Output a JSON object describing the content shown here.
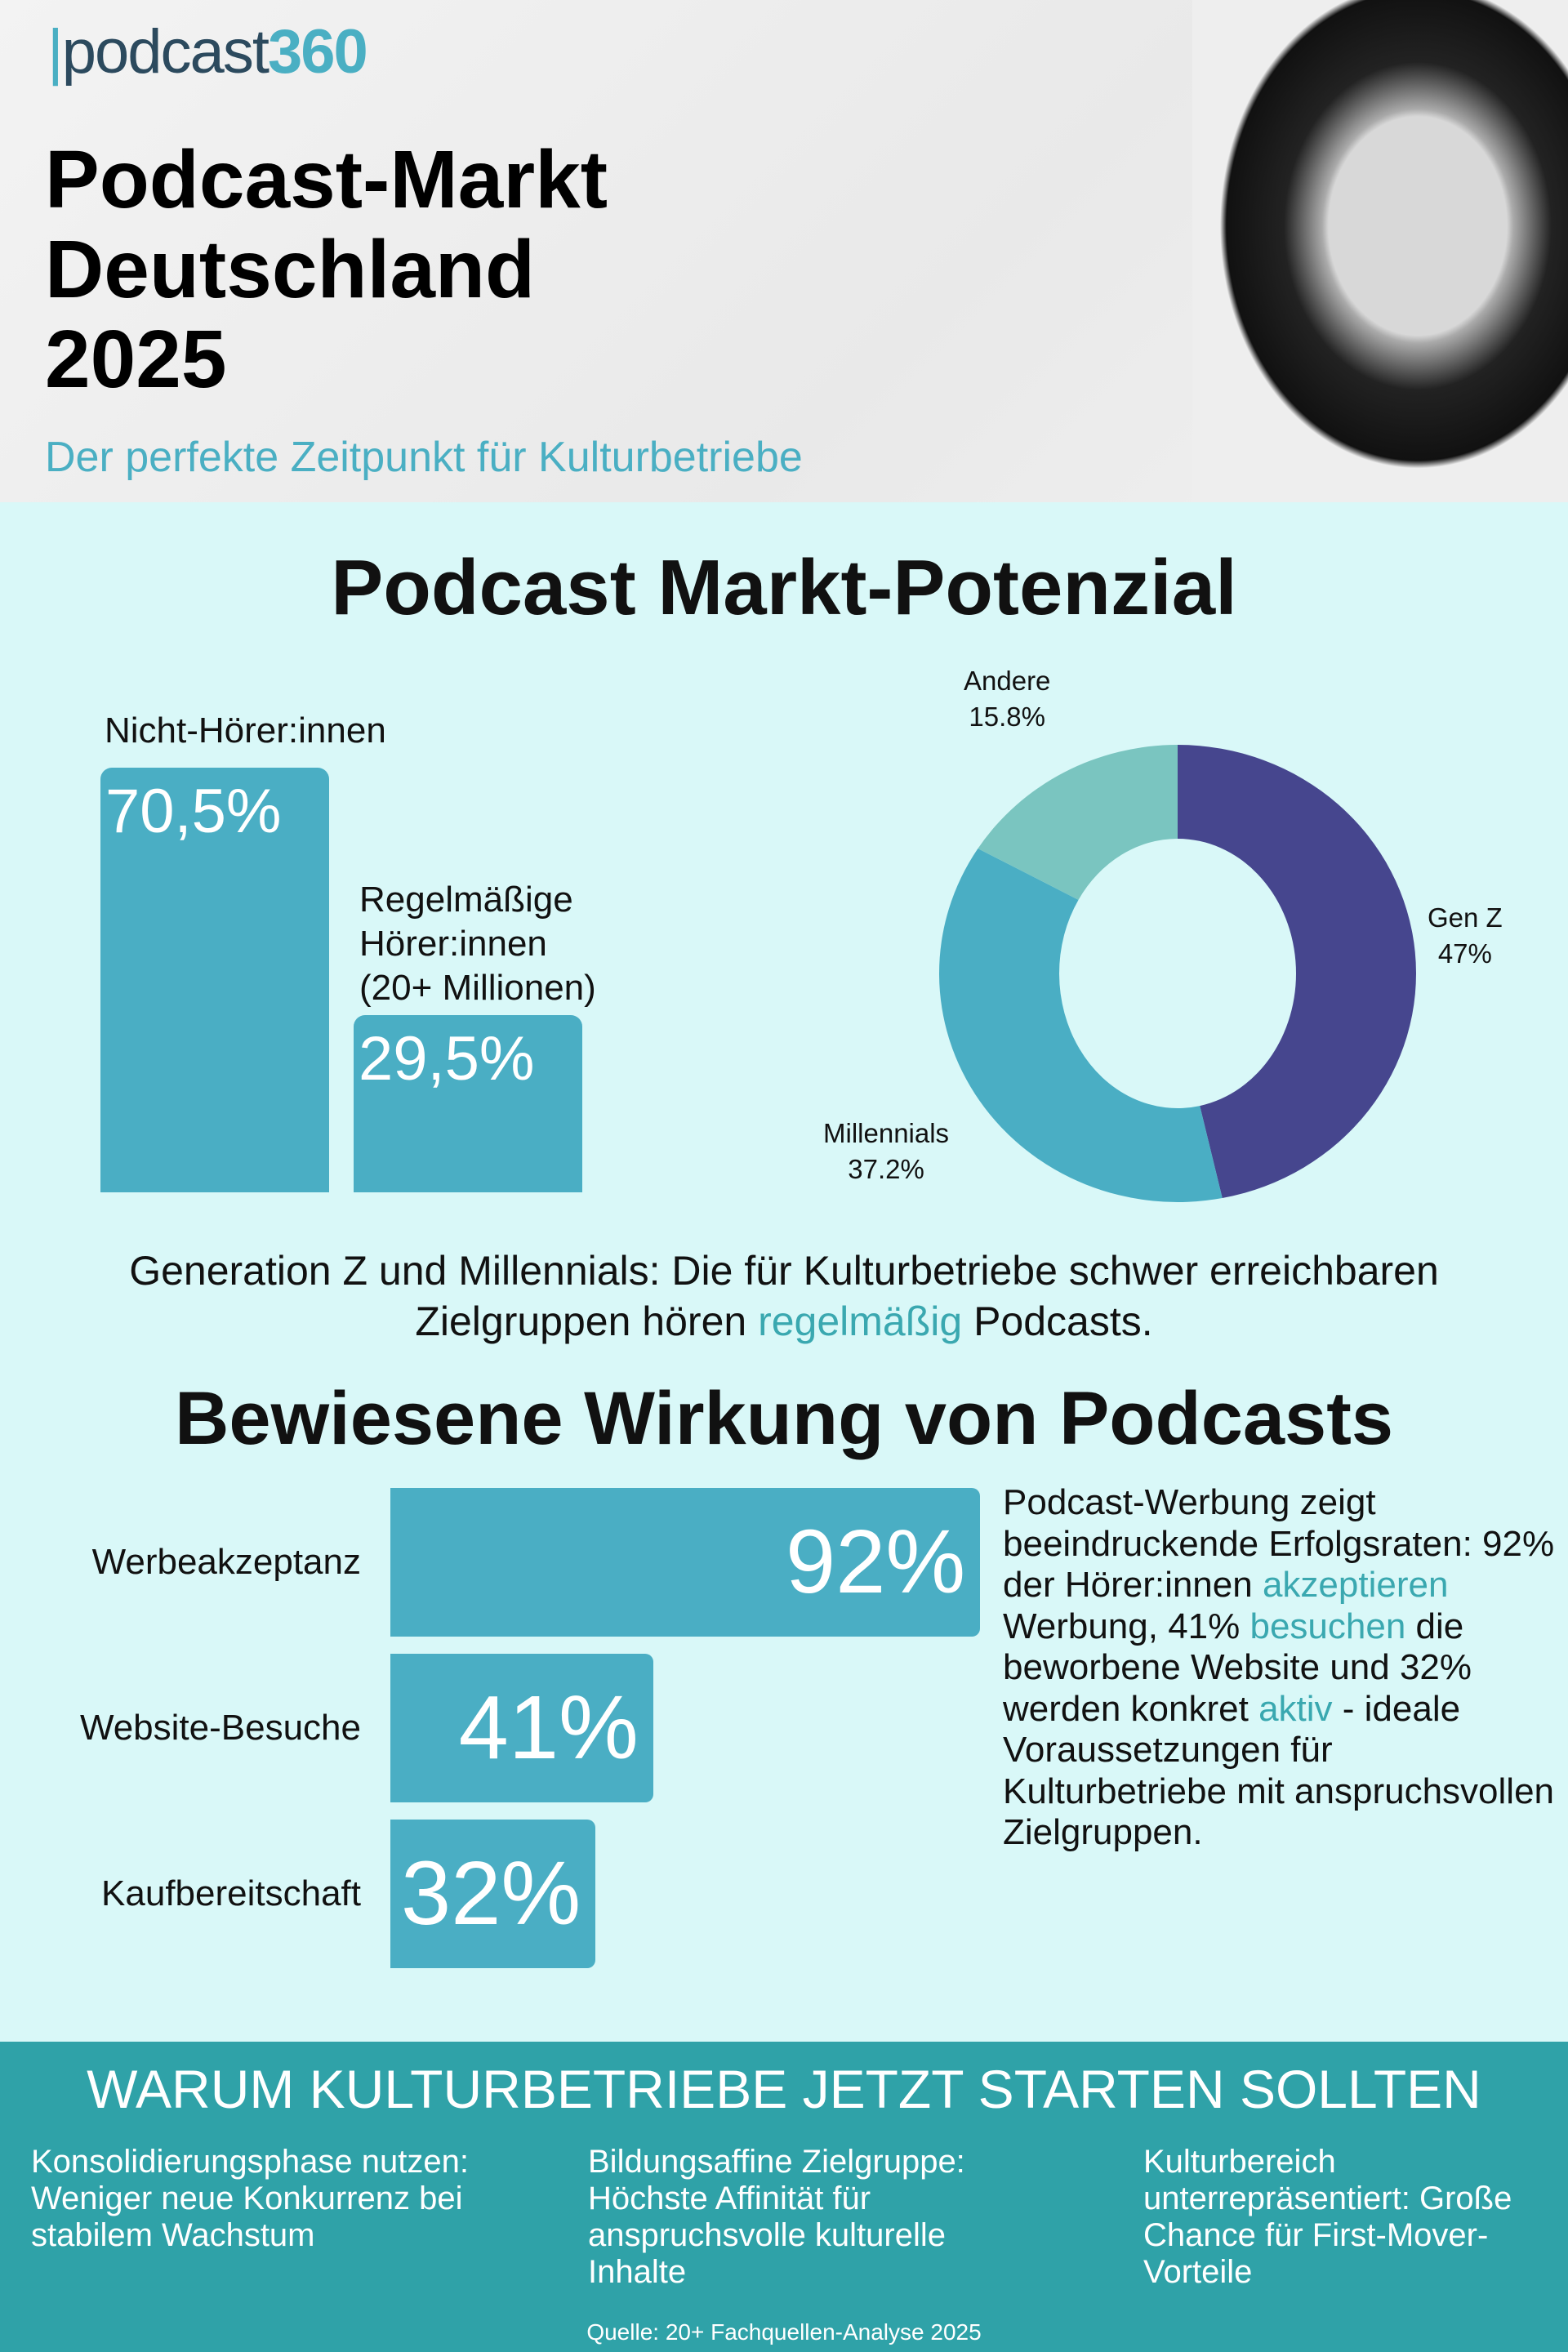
{
  "header": {
    "logo_text": "podcast",
    "logo_num": "360",
    "title_lines": [
      "Podcast-Markt",
      "Deutschland",
      "2025"
    ],
    "subtitle": "Der perfekte Zeitpunkt für Kulturbetriebe"
  },
  "section1": {
    "title": "Podcast Markt-Potenzial"
  },
  "chart_data": [
    {
      "type": "bar",
      "categories": [
        "Nicht-Hörer:innen",
        "Regelmäßige Hörer:innen (20+ Millionen)"
      ],
      "values": [
        70.5,
        29.5
      ],
      "value_labels": [
        "70,5%",
        "29,5%"
      ],
      "label_lines": [
        [
          "Nicht-Hörer:innen"
        ],
        [
          "Regelmäßige",
          "Hörer:innen",
          "(20+ Millionen)"
        ]
      ],
      "color": "#4aaec4"
    },
    {
      "type": "pie",
      "donut": true,
      "slices": [
        {
          "name": "Gen Z",
          "value": 47,
          "label": "47%",
          "color": "#46468e"
        },
        {
          "name": "Millennials",
          "value": 37.2,
          "label": "37.2%",
          "color": "#4aaec4"
        },
        {
          "name": "Andere",
          "value": 15.8,
          "label": "15.8%",
          "color": "#7ac5c0"
        }
      ]
    },
    {
      "type": "bar",
      "orientation": "horizontal",
      "categories": [
        "Werbeakzeptanz",
        "Website-Besuche",
        "Kaufbereitschaft"
      ],
      "values": [
        92,
        41,
        32
      ],
      "value_labels": [
        "92%",
        "41%",
        "32%"
      ],
      "color": "#4aaec4"
    }
  ],
  "sentence": {
    "part1": "Generation Z und Millennials: Die für  Kulturbetriebe schwer erreichbaren",
    "part2": "Zielgruppen hören ",
    "highlight": "regelmäßig",
    "part3": " Podcasts."
  },
  "section2": {
    "title": "Bewiesene Wirkung von Podcasts",
    "text": {
      "t1": "Podcast-Werbung zeigt beeindruckende Erfolgsraten: 92% der Hörer:innen ",
      "h1": "akzeptieren",
      "t2": " Werbung, 41% ",
      "h2": "besuchen",
      "t3": " die beworbene Website und 32% werden konkret ",
      "h3": "aktiv",
      "t4": " - ideale Voraussetzungen für Kulturbetriebe mit anspruchsvollen Zielgruppen."
    }
  },
  "footer": {
    "title": "WARUM KULTURBETRIEBE JETZT STARTEN SOLLTEN",
    "columns": [
      "Konsolidierungsphase nutzen: Weniger neue Konkurrenz bei stabilem Wachstum",
      "Bildungsaffine Zielgruppe: Höchste Affinität für anspruchsvolle kulturelle Inhalte",
      "Kulturbereich unterrepräsentiert: Große Chance für First-Mover-Vorteile"
    ],
    "source": "Quelle: 20+ Fachquellen-Analyse 2025"
  }
}
